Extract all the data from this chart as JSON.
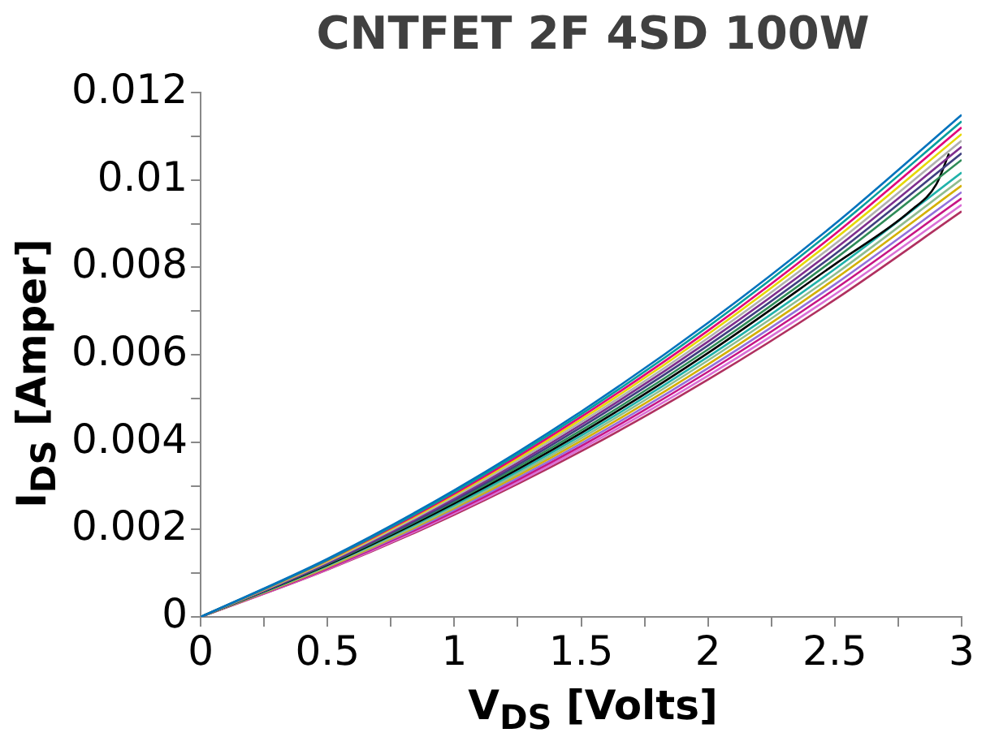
{
  "chart_data": {
    "type": "line",
    "title": "CNTFET 2F 4SD 100W",
    "xlabel": "V$_{DS}$ [Volts]",
    "ylabel": "I$_{DS}$ [Amper]",
    "x": [
      0,
      0.5,
      1,
      1.5,
      2,
      2.5,
      3
    ],
    "xlim": [
      0,
      3
    ],
    "xticks": [
      0,
      {
        "value": 0.25,
        "label": null
      },
      0.5,
      {
        "value": 0.75,
        "label": null
      },
      1,
      {
        "value": 1.25,
        "label": null
      },
      1.5,
      {
        "value": 1.75,
        "label": null
      },
      2,
      {
        "value": 2.25,
        "label": null
      },
      2.5,
      {
        "value": 2.75,
        "label": null
      },
      3
    ],
    "ylim": [
      0,
      0.012
    ],
    "yticks": [
      0,
      {
        "value": 0.001,
        "label": null
      },
      0.002,
      {
        "value": 0.003,
        "label": null
      },
      0.004,
      {
        "value": 0.005,
        "label": null
      },
      0.006,
      {
        "value": 0.007,
        "label": null
      },
      0.008,
      {
        "value": 0.009,
        "label": null
      },
      0.01,
      {
        "value": 0.011,
        "label": null
      },
      0.012
    ],
    "marker": "none",
    "line_style": "solid",
    "legend": false,
    "series": [
      {
        "color": "#0072bd",
        "values": [
          0,
          0.00133,
          0.0029,
          0.0047,
          0.00673,
          0.00899,
          0.01149
        ]
      },
      {
        "color": "#009e9e",
        "values": [
          0,
          0.00131,
          0.00286,
          0.00464,
          0.00664,
          0.00888,
          0.01134
        ]
      },
      {
        "color": "#e0007a",
        "values": [
          0,
          0.0013,
          0.00282,
          0.00458,
          0.00655,
          0.00876,
          0.0112
        ]
      },
      {
        "color": "#e6d800",
        "values": [
          0,
          0.00128,
          0.00279,
          0.00452,
          0.00647,
          0.00865,
          0.01105
        ]
      },
      {
        "color": "#b0b0b0",
        "values": [
          0,
          0.00126,
          0.00275,
          0.00446,
          0.00638,
          0.00853,
          0.0109
        ]
      },
      {
        "color": "#7e2f8e",
        "values": [
          0,
          0.00124,
          0.00271,
          0.0044,
          0.0063,
          0.00842,
          0.01076
        ]
      },
      {
        "color": "#404080",
        "values": [
          0,
          0.00122,
          0.00267,
          0.00434,
          0.00621,
          0.0083,
          0.01061
        ]
      },
      {
        "color": "#2e8b57",
        "values": [
          0,
          0.00121,
          0.00264,
          0.00427,
          0.00612,
          0.00819,
          0.01046
        ]
      },
      {
        "color": "#000000",
        "x": [
          0,
          0.5,
          1,
          1.5,
          2,
          2.5,
          2.8,
          2.9,
          2.95
        ],
        "values": [
          0,
          0.00119,
          0.0026,
          0.00421,
          0.00604,
          0.00807,
          0.0093,
          0.0099,
          0.0106
        ]
      },
      {
        "color": "#20b2aa",
        "values": [
          0,
          0.00118,
          0.00256,
          0.00415,
          0.00595,
          0.00796,
          0.01017
        ]
      },
      {
        "color": "#8fbc8f",
        "values": [
          0,
          0.00116,
          0.00252,
          0.00409,
          0.00587,
          0.00784,
          0.01002
        ]
      },
      {
        "color": "#d4b000",
        "values": [
          0,
          0.00114,
          0.00249,
          0.00403,
          0.00578,
          0.00773,
          0.00987
        ]
      },
      {
        "color": "#9370db",
        "values": [
          0,
          0.00113,
          0.00245,
          0.00397,
          0.00569,
          0.00761,
          0.00972
        ]
      },
      {
        "color": "#c71585",
        "values": [
          0,
          0.00111,
          0.00241,
          0.00391,
          0.00561,
          0.0075,
          0.00958
        ]
      },
      {
        "color": "#da70d6",
        "values": [
          0,
          0.00109,
          0.00237,
          0.00385,
          0.00552,
          0.00738,
          0.00943
        ]
      },
      {
        "color": "#b03060",
        "values": [
          0,
          0.00108,
          0.00234,
          0.00379,
          0.00543,
          0.00726,
          0.00928
        ]
      }
    ]
  }
}
